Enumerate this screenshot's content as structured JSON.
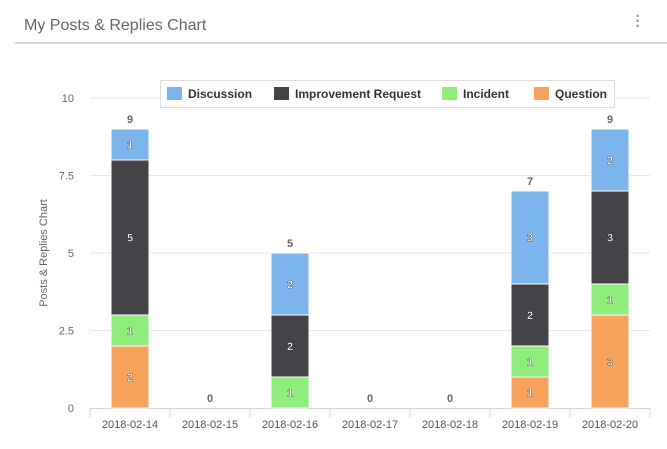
{
  "header": {
    "title": "My Posts & Replies Chart",
    "menu_icon": "more-vertical-icon"
  },
  "chart_data": {
    "type": "bar",
    "stacked": true,
    "title": "My Posts & Replies Chart",
    "xlabel": "",
    "ylabel": "Posts & Replies Chart",
    "ylim": [
      0,
      10
    ],
    "yticks": [
      "0",
      "2.5",
      "5",
      "7.5",
      "10"
    ],
    "yticks_values": [
      0,
      2.5,
      5,
      7.5,
      10
    ],
    "categories": [
      "2018-02-14",
      "2018-02-15",
      "2018-02-16",
      "2018-02-17",
      "2018-02-18",
      "2018-02-19",
      "2018-02-20"
    ],
    "legend_position": "top",
    "series": [
      {
        "name": "Question",
        "color": "#f7a35c",
        "values": [
          2,
          0,
          0,
          0,
          0,
          1,
          3
        ]
      },
      {
        "name": "Incident",
        "color": "#90ed7d",
        "values": [
          1,
          0,
          1,
          0,
          0,
          1,
          1
        ]
      },
      {
        "name": "Improvement Request",
        "color": "#434348",
        "values": [
          5,
          0,
          2,
          0,
          0,
          2,
          3
        ]
      },
      {
        "name": "Discussion",
        "color": "#7cb5ec",
        "values": [
          1,
          0,
          2,
          0,
          0,
          3,
          2
        ]
      }
    ],
    "legend_order": [
      "Discussion",
      "Improvement Request",
      "Incident",
      "Question"
    ],
    "totals": [
      9,
      0,
      5,
      0,
      0,
      7,
      9
    ]
  }
}
